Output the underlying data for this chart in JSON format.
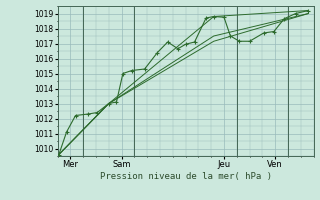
{
  "xlabel": "Pression niveau de la mer( hPa )",
  "bg_color": "#cce8dd",
  "grid_color": "#99bbbb",
  "line_color": "#2d6b2d",
  "marker_color": "#2d6b2d",
  "ylim": [
    1009.5,
    1019.5
  ],
  "yticks": [
    1010,
    1011,
    1012,
    1013,
    1014,
    1015,
    1016,
    1017,
    1018,
    1019
  ],
  "xtick_labels": [
    "Mer",
    "Sam",
    "Jeu",
    "Ven"
  ],
  "xtick_pos": [
    0.5,
    2.5,
    6.5,
    8.5
  ],
  "vline_pos": [
    1.0,
    3.0,
    7.0,
    9.0
  ],
  "xlim": [
    0.0,
    10.0
  ],
  "series_main": {
    "x": [
      0.05,
      0.35,
      0.7,
      1.2,
      1.55,
      2.0,
      2.3,
      2.55,
      2.9,
      3.4,
      3.9,
      4.3,
      4.7,
      5.0,
      5.35,
      5.8,
      6.1,
      6.5,
      6.75,
      7.1,
      7.5,
      8.05,
      8.45,
      8.85,
      9.3,
      9.8
    ],
    "y": [
      1009.6,
      1011.1,
      1012.2,
      1012.3,
      1012.4,
      1013.0,
      1013.1,
      1015.0,
      1015.2,
      1015.3,
      1016.4,
      1017.1,
      1016.65,
      1016.95,
      1017.1,
      1018.7,
      1018.8,
      1018.75,
      1017.5,
      1017.15,
      1017.15,
      1017.7,
      1017.8,
      1018.65,
      1019.0,
      1019.2
    ]
  },
  "series_lines": [
    {
      "x": [
        0.05,
        2.0,
        6.1,
        9.8
      ],
      "y": [
        1009.6,
        1013.0,
        1018.8,
        1019.2
      ]
    },
    {
      "x": [
        0.05,
        2.0,
        6.1,
        9.8
      ],
      "y": [
        1009.6,
        1013.0,
        1017.5,
        1019.0
      ]
    },
    {
      "x": [
        0.05,
        2.0,
        6.1,
        9.8
      ],
      "y": [
        1009.6,
        1013.0,
        1017.15,
        1019.0
      ]
    }
  ]
}
